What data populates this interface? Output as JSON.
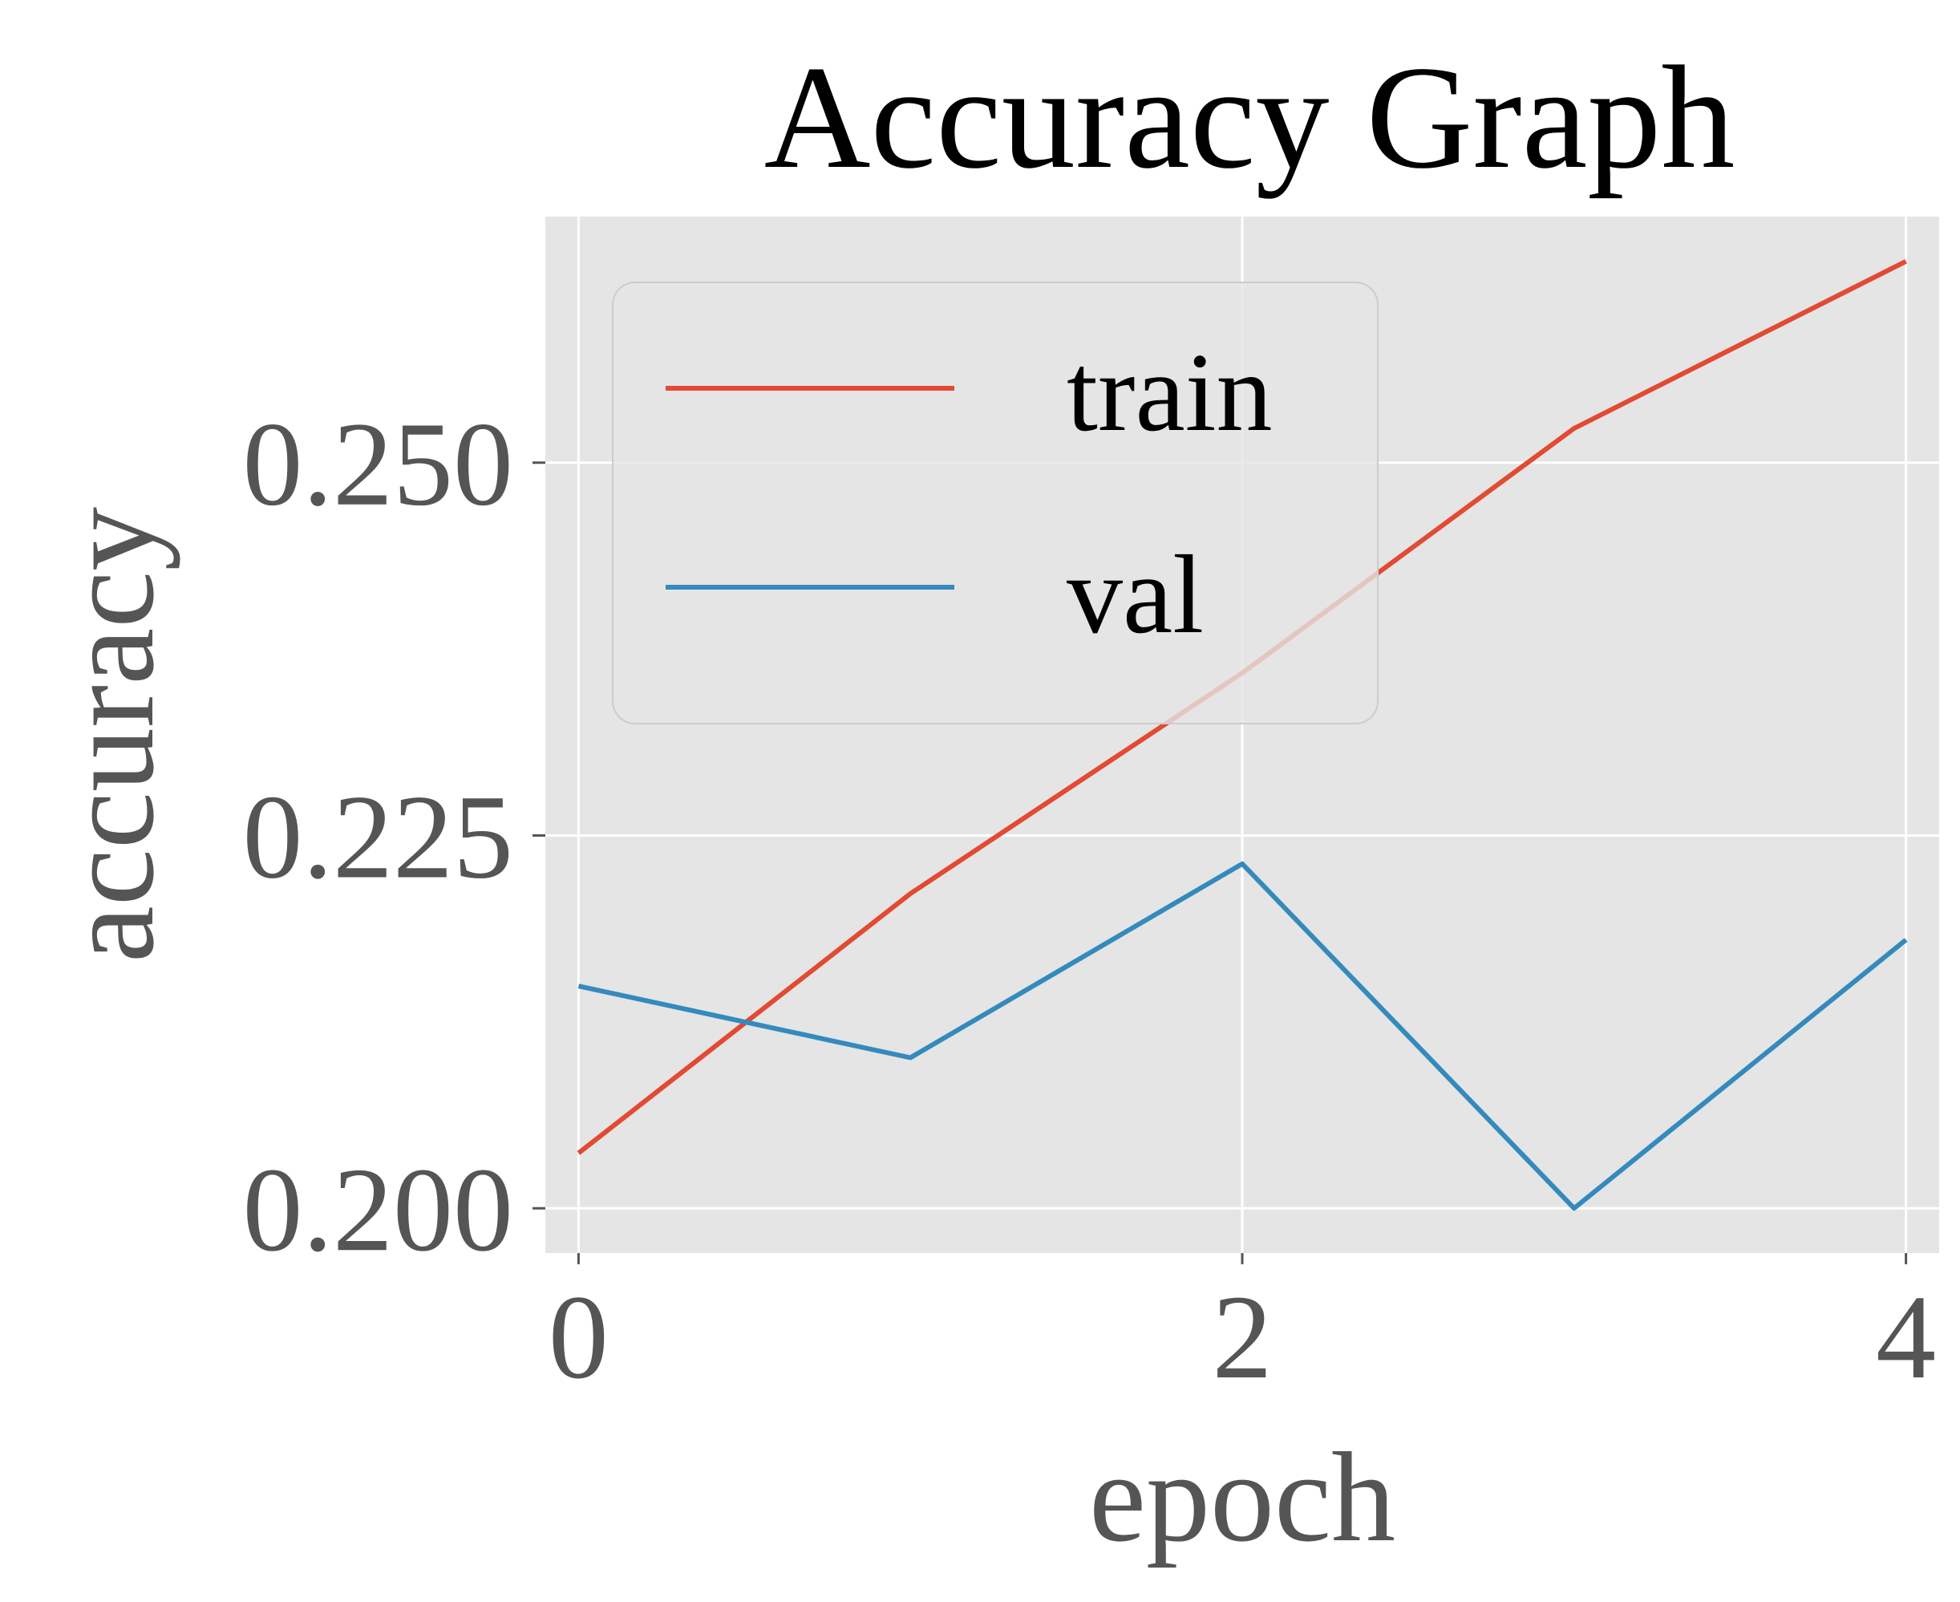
{
  "chart_data": {
    "type": "line",
    "title": "Accuracy Graph",
    "xlabel": "epoch",
    "ylabel": "accuracy",
    "x": [
      0,
      1,
      2,
      3,
      4
    ],
    "xlim": [
      -0.1,
      4.1
    ],
    "ylim": [
      0.197,
      0.2665
    ],
    "xticks": [
      0,
      2,
      4
    ],
    "xtick_labels": [
      "0",
      "2",
      "4"
    ],
    "yticks": [
      0.2,
      0.225,
      0.25
    ],
    "ytick_labels": [
      "0.200",
      "0.225",
      "0.250"
    ],
    "grid": true,
    "legend_position": "top-left",
    "series": [
      {
        "name": "train",
        "color": "#E24A33",
        "values": [
          0.2037,
          0.2211,
          0.2359,
          0.2523,
          0.2635
        ]
      },
      {
        "name": "val",
        "color": "#348ABD",
        "values": [
          0.2149,
          0.2101,
          0.2231,
          0.2,
          0.218
        ]
      }
    ],
    "plot_background": "#E5E5E5",
    "grid_color": "#FFFFFF"
  }
}
